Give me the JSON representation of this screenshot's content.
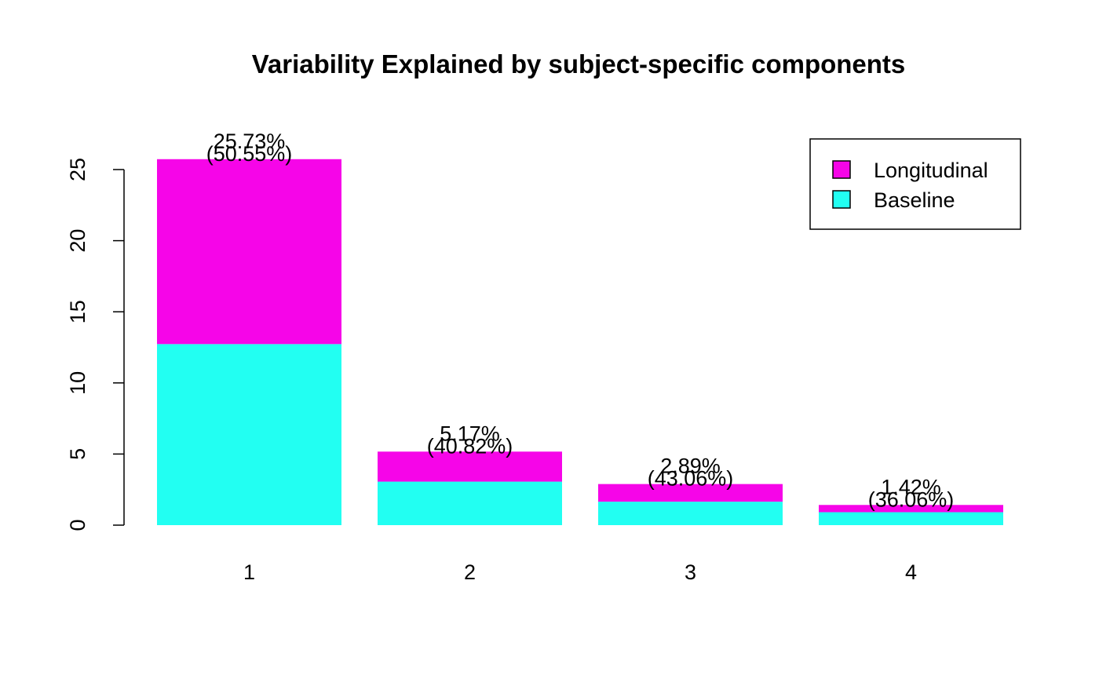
{
  "chart_data": {
    "type": "bar",
    "stacked": true,
    "title": "Variability Explained by subject-specific components",
    "xlabel": "",
    "ylabel": "",
    "categories": [
      "1",
      "2",
      "3",
      "4"
    ],
    "series": [
      {
        "name": "Baseline",
        "color": "#22fff2",
        "values": [
          12.73,
          3.06,
          1.65,
          0.91
        ]
      },
      {
        "name": "Longitudinal",
        "color": "#f605e8",
        "values": [
          13.0,
          2.11,
          1.24,
          0.51
        ]
      }
    ],
    "totals": [
      25.73,
      5.17,
      2.89,
      1.42
    ],
    "bar_labels": [
      {
        "total": "25.73%",
        "share": "(50.55%)"
      },
      {
        "total": "5.17%",
        "share": "(40.82%)"
      },
      {
        "total": "2.89%",
        "share": "(43.06%)"
      },
      {
        "total": "1.42%",
        "share": "(36.06%)"
      }
    ],
    "yticks": [
      "0",
      "5",
      "10",
      "15",
      "20",
      "25"
    ],
    "ylim": [
      0,
      27
    ],
    "grid": false,
    "legend": {
      "placement": "top-right",
      "entries": [
        "Longitudinal",
        "Baseline"
      ]
    }
  }
}
